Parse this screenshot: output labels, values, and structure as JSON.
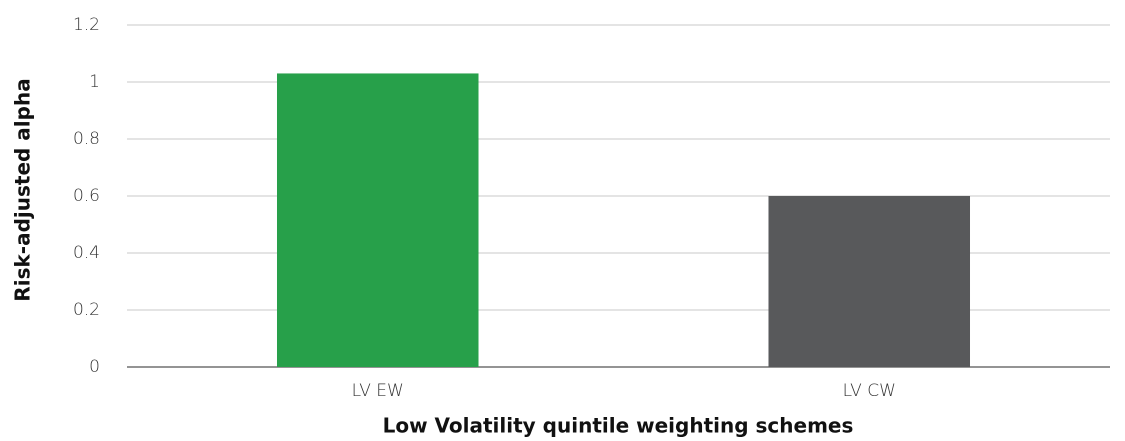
{
  "chart_data": {
    "type": "bar",
    "y_label": "Risk-adjusted alpha",
    "x_label": "Low Volatility quintile weighting schemes",
    "categories": [
      "LV EW",
      "LV CW"
    ],
    "values": [
      1.03,
      0.6
    ],
    "colors": [
      "#27a04a",
      "#58595b"
    ],
    "ylim": [
      0,
      1.2
    ],
    "yticks": [
      0,
      0.2,
      0.4,
      0.6,
      0.8,
      1,
      1.2
    ],
    "grid": true
  }
}
